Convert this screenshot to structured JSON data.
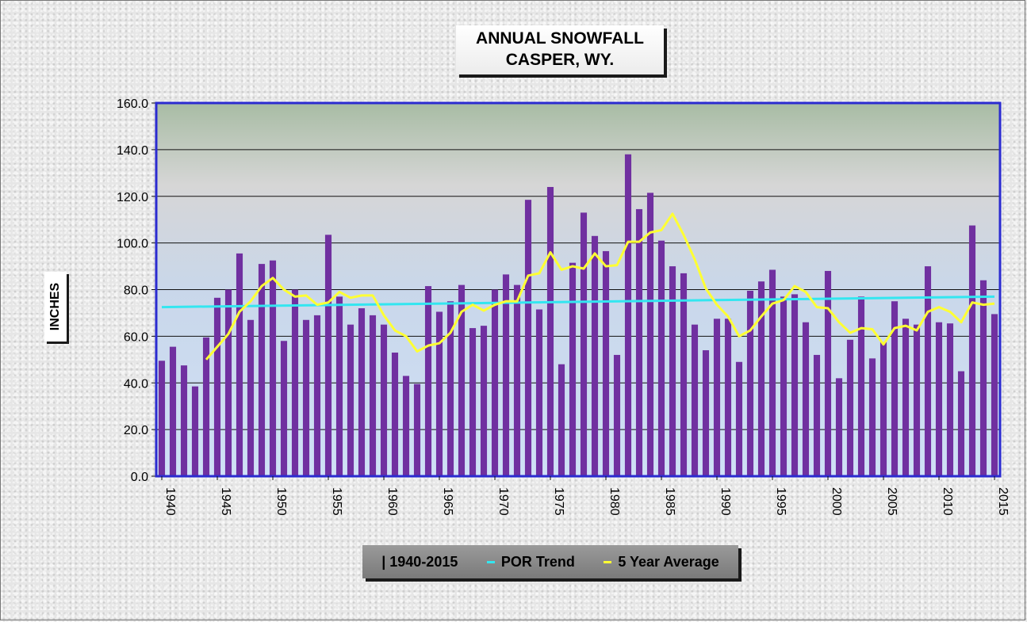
{
  "chart_data": {
    "type": "bar",
    "title": "ANNUAL SNOWFALL",
    "subtitle": "CASPER, WY.",
    "ylabel": "INCHES",
    "xlabel": "",
    "ylim": [
      0,
      160
    ],
    "y_ticks": [
      "0.0",
      "20.0",
      "40.0",
      "60.0",
      "80.0",
      "100.0",
      "120.0",
      "140.0",
      "160.0"
    ],
    "x_tick_labels": [
      "1940",
      "1945",
      "1950",
      "1955",
      "1960",
      "1965",
      "1970",
      "1975",
      "1980",
      "1985",
      "1990",
      "1995",
      "2000",
      "2005",
      "2010",
      "2015"
    ],
    "grid": true,
    "legend_position": "bottom",
    "x": [
      1940,
      1941,
      1942,
      1943,
      1944,
      1945,
      1946,
      1947,
      1948,
      1949,
      1950,
      1951,
      1952,
      1953,
      1954,
      1955,
      1956,
      1957,
      1958,
      1959,
      1960,
      1961,
      1962,
      1963,
      1964,
      1965,
      1966,
      1967,
      1968,
      1969,
      1970,
      1971,
      1972,
      1973,
      1974,
      1975,
      1976,
      1977,
      1978,
      1979,
      1980,
      1981,
      1982,
      1983,
      1984,
      1985,
      1986,
      1987,
      1988,
      1989,
      1990,
      1991,
      1992,
      1993,
      1994,
      1995,
      1996,
      1997,
      1998,
      1999,
      2000,
      2001,
      2002,
      2003,
      2004,
      2005,
      2006,
      2007,
      2008,
      2009,
      2010,
      2011,
      2012,
      2013,
      2014,
      2015
    ],
    "series": [
      {
        "name": "| 1940-2015",
        "type": "bar",
        "color": "#7030a0",
        "values": [
          49.5,
          55.5,
          47.5,
          38.5,
          59.5,
          76.5,
          80.0,
          95.5,
          67.0,
          91.0,
          92.5,
          58.0,
          80.0,
          67.0,
          69.0,
          103.5,
          77.0,
          65.0,
          72.0,
          69.0,
          65.0,
          53.0,
          43.0,
          39.5,
          81.5,
          70.5,
          75.0,
          82.0,
          63.5,
          64.5,
          80.0,
          86.5,
          82.0,
          118.5,
          71.5,
          124.0,
          48.0,
          91.5,
          113.0,
          103.0,
          96.5,
          52.0,
          138.0,
          114.5,
          121.5,
          101.0,
          90.0,
          87.0,
          65.0,
          54.0,
          67.5,
          67.5,
          49.0,
          79.5,
          83.5,
          88.5,
          77.0,
          78.0,
          66.0,
          52.0,
          88.0,
          42.0,
          58.5,
          77.0,
          50.5,
          57.5,
          75.0,
          67.5,
          65.0,
          90.0,
          66.0,
          65.5,
          45.0,
          107.5,
          84.0,
          69.5
        ]
      },
      {
        "name": "POR Trend",
        "type": "line",
        "color": "#33e6f0",
        "x": [
          1940,
          2015
        ],
        "values": [
          72.5,
          77.0
        ]
      },
      {
        "name": "5 Year Average",
        "type": "line",
        "color": "#ffff33",
        "x": [
          1944,
          1945,
          1946,
          1947,
          1948,
          1949,
          1950,
          1951,
          1952,
          1953,
          1954,
          1955,
          1956,
          1957,
          1958,
          1959,
          1960,
          1961,
          1962,
          1963,
          1964,
          1965,
          1966,
          1967,
          1968,
          1969,
          1970,
          1971,
          1972,
          1973,
          1974,
          1975,
          1976,
          1977,
          1978,
          1979,
          1980,
          1981,
          1982,
          1983,
          1984,
          1985,
          1986,
          1987,
          1988,
          1989,
          1990,
          1991,
          1992,
          1993,
          1994,
          1995,
          1996,
          1997,
          1998,
          1999,
          2000,
          2001,
          2002,
          2003,
          2004,
          2005,
          2006,
          2007,
          2008,
          2009,
          2010,
          2011,
          2012,
          2013,
          2014,
          2015
        ],
        "values": [
          50.0,
          55.5,
          61.0,
          70.5,
          75.0,
          81.5,
          85.0,
          80.0,
          77.0,
          77.5,
          73.5,
          74.5,
          79.0,
          76.5,
          77.5,
          77.5,
          69.0,
          62.5,
          60.0,
          53.5,
          56.0,
          57.0,
          61.5,
          70.5,
          73.5,
          71.0,
          73.5,
          75.0,
          75.0,
          86.0,
          87.0,
          96.0,
          88.5,
          90.0,
          89.0,
          95.5,
          90.0,
          90.5,
          100.5,
          100.5,
          104.5,
          105.5,
          112.5,
          103.5,
          93.0,
          80.5,
          73.5,
          68.5,
          60.0,
          62.5,
          68.5,
          74.0,
          75.5,
          81.5,
          79.0,
          72.5,
          72.0,
          66.0,
          61.5,
          63.5,
          63.0,
          56.5,
          63.5,
          64.5,
          62.5,
          70.5,
          72.5,
          70.5,
          66.0,
          74.5,
          73.5,
          74.0
        ]
      }
    ]
  }
}
